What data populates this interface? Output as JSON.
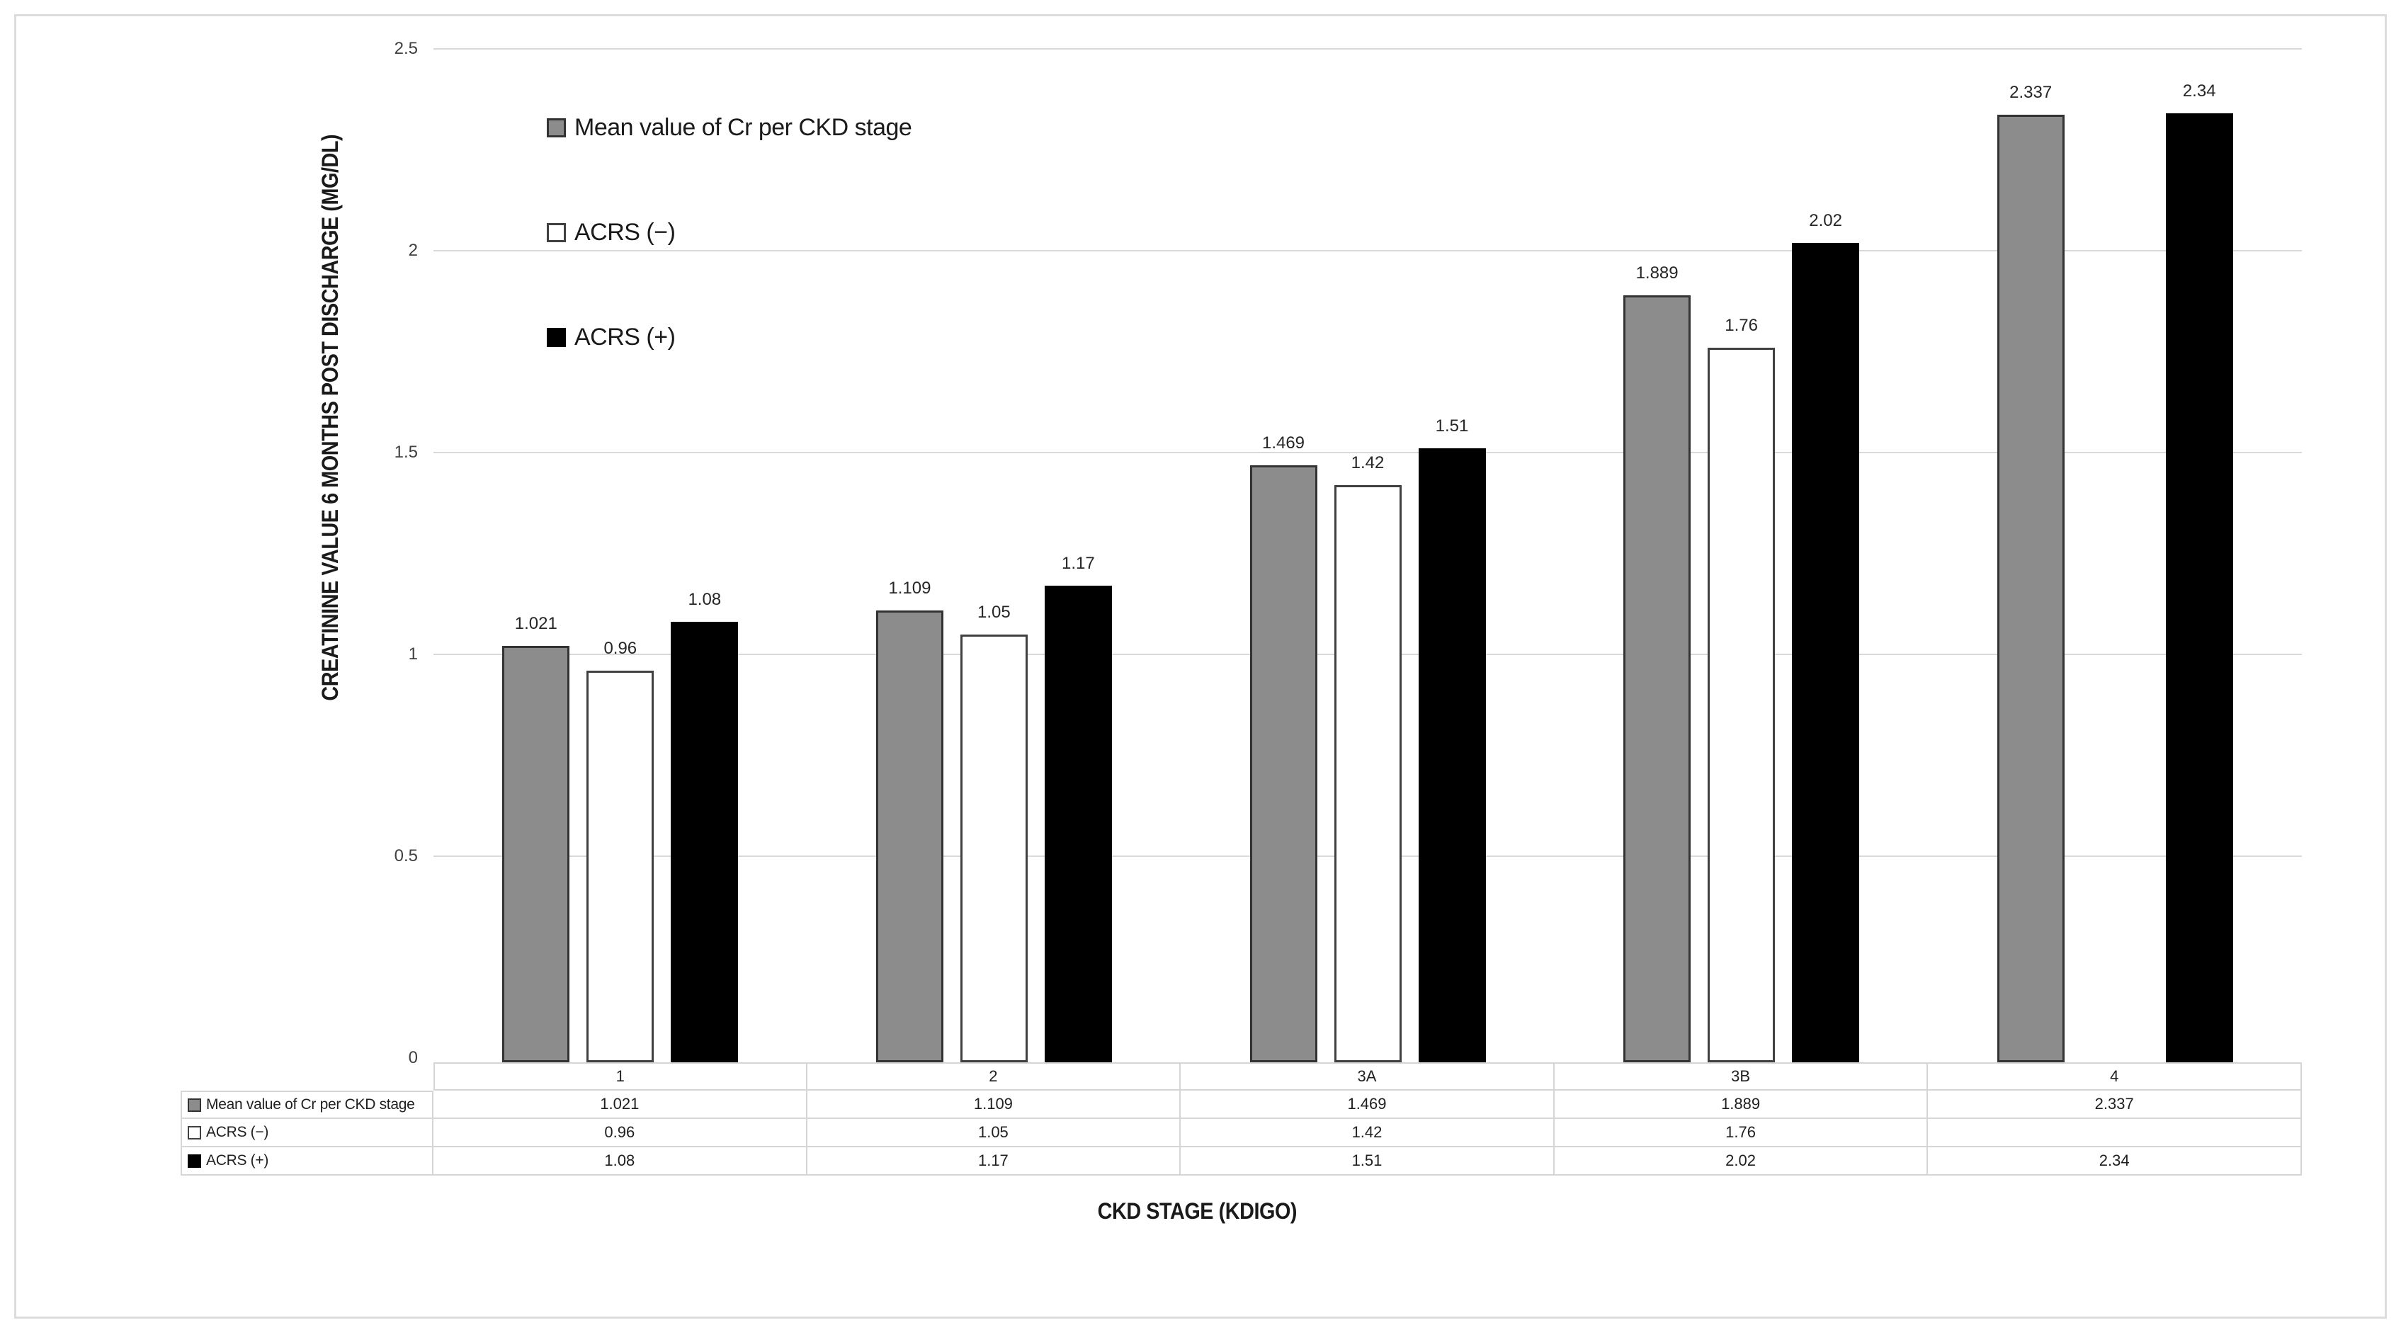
{
  "chart_data": {
    "type": "bar",
    "title": "",
    "xlabel": "CKD STAGE (KDIGO)",
    "ylabel": "CREATININE VALUE 6 MONTHS POST DISCHARGE (MG/DL)",
    "ylim": [
      0,
      2.5
    ],
    "yticks": [
      "0",
      "0.5",
      "1",
      "1.5",
      "2",
      "2.5"
    ],
    "grid": true,
    "legend_position": "upper-left-inside",
    "categories": [
      "1",
      "2",
      "3A",
      "3B",
      "4"
    ],
    "series": [
      {
        "name": "Mean value of Cr per CKD stage",
        "values": [
          1.021,
          1.109,
          1.469,
          1.889,
          2.337
        ],
        "labels": [
          "1.021",
          "1.109",
          "1.469",
          "1.889",
          "2.337"
        ],
        "fill": "#8C8C8C",
        "border": "#333333"
      },
      {
        "name": "ACRS (−)",
        "values": [
          0.96,
          1.05,
          1.42,
          1.76,
          null
        ],
        "labels": [
          "0.96",
          "1.05",
          "1.42",
          "1.76",
          ""
        ],
        "fill": "#FFFFFF",
        "border": "#404040"
      },
      {
        "name": "ACRS (+)",
        "values": [
          1.08,
          1.17,
          1.51,
          2.02,
          2.34
        ],
        "labels": [
          "1.08",
          "1.17",
          "1.51",
          "2.02",
          "2.34"
        ],
        "fill": "#000000",
        "border": "#000000"
      }
    ],
    "data_table": {
      "row_headers": [
        "Mean value of Cr per CKD stage",
        "ACRS (−)",
        "ACRS (+)"
      ],
      "rows": [
        [
          "1.021",
          "1.109",
          "1.469",
          "1.889",
          "2.337"
        ],
        [
          "0.96",
          "1.05",
          "1.42",
          "1.76",
          ""
        ],
        [
          "1.08",
          "1.17",
          "1.51",
          "2.02",
          "2.34"
        ]
      ]
    }
  },
  "colors": {
    "gridline": "#D9D9D9",
    "frame_border": "#DCDCDC",
    "table_border": "#D6D6D6",
    "tick_text": "#404040",
    "label_text": "#262626"
  }
}
